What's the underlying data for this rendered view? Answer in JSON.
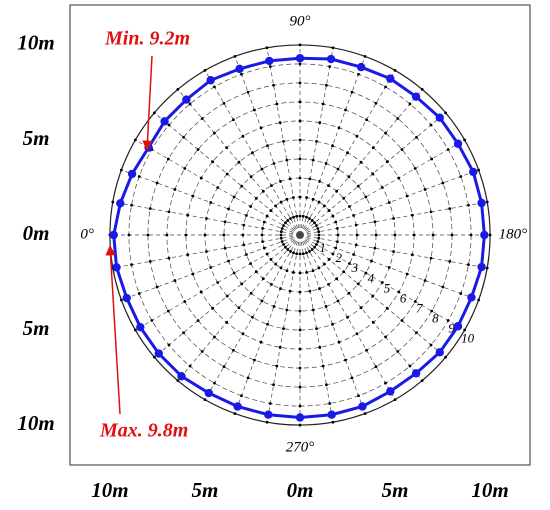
{
  "chart_data": {
    "type": "polar",
    "theta": [
      0,
      10,
      20,
      30,
      40,
      50,
      60,
      70,
      80,
      90,
      100,
      110,
      120,
      130,
      140,
      150,
      160,
      170,
      180,
      190,
      200,
      210,
      220,
      230,
      240,
      250,
      260,
      270,
      280,
      290,
      300,
      310,
      320,
      330,
      340,
      350
    ],
    "r": [
      9.8,
      9.6,
      9.4,
      9.2,
      9.3,
      9.3,
      9.4,
      9.3,
      9.3,
      9.3,
      9.4,
      9.4,
      9.5,
      9.5,
      9.6,
      9.6,
      9.7,
      9.7,
      9.7,
      9.7,
      9.6,
      9.6,
      9.6,
      9.5,
      9.5,
      9.6,
      9.6,
      9.6,
      9.6,
      9.6,
      9.6,
      9.7,
      9.7,
      9.7,
      9.7,
      9.8
    ],
    "color": "#1a1ae6",
    "rlim": [
      0,
      10
    ],
    "rticks": [
      1,
      2,
      3,
      4,
      5,
      6,
      7,
      8,
      9,
      10
    ],
    "thetaticks": [
      {
        "value": 0,
        "label": "0°"
      },
      {
        "value": 90,
        "label": "90°"
      },
      {
        "value": 180,
        "label": "180°"
      },
      {
        "value": 270,
        "label": "270°"
      }
    ],
    "xlim": [
      -12.1,
      12.1
    ],
    "ylim": [
      -12.1,
      12.1
    ],
    "xticks": [
      {
        "value": -10,
        "label": "10m"
      },
      {
        "value": -5,
        "label": "5m"
      },
      {
        "value": 0,
        "label": "0m"
      },
      {
        "value": 5,
        "label": "5m"
      },
      {
        "value": 10,
        "label": "10m"
      }
    ],
    "yticks": [
      {
        "value": -10,
        "label": "10m"
      },
      {
        "value": -5,
        "label": "5m"
      },
      {
        "value": 0,
        "label": "0m"
      },
      {
        "value": 5,
        "label": "5m"
      },
      {
        "value": 10,
        "label": "10m"
      }
    ],
    "annotations": [
      {
        "text": "Min. 9.2m"
      },
      {
        "text": "Max. 9.8m"
      }
    ]
  }
}
